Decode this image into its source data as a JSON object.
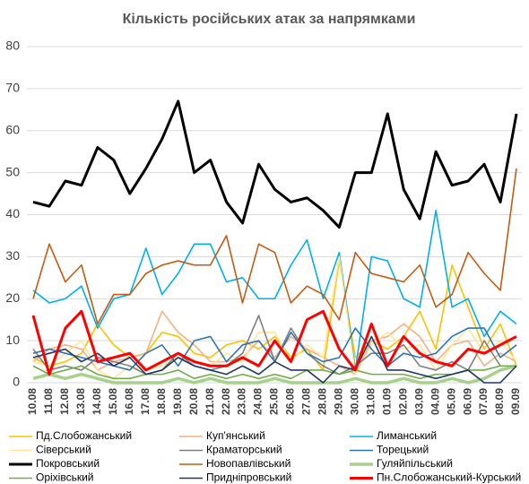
{
  "chart_data": {
    "type": "line",
    "title": "Кількість російських атак за напрямками",
    "categories": [
      "10.08",
      "11.08",
      "12.08",
      "13.08",
      "14.08",
      "15.08",
      "16.08",
      "17.08",
      "18.08",
      "19.08",
      "20.08",
      "21.08",
      "22.08",
      "23.08",
      "24.08",
      "25.08",
      "26.08",
      "27.08",
      "28.08",
      "29.08",
      "30.08",
      "31.08",
      "01.09",
      "02.09",
      "03.09",
      "04.09",
      "05.09",
      "06.09",
      "07.09",
      "08.09",
      "09.09"
    ],
    "ylim": [
      0,
      80
    ],
    "yticks": [
      0,
      10,
      20,
      30,
      40,
      50,
      60,
      70,
      80
    ],
    "grid": true,
    "series": [
      {
        "name": "Пд.Слобожанський",
        "color": "#ffc000",
        "width": 1.6,
        "values": [
          6,
          4,
          5,
          7,
          14,
          9,
          6,
          7,
          12,
          11,
          7,
          6,
          9,
          10,
          8,
          11,
          6,
          8,
          3,
          29,
          6,
          10,
          8,
          11,
          17,
          8,
          28,
          18,
          8,
          14,
          4
        ]
      },
      {
        "name": "Куп'янський",
        "color": "#f4b183",
        "width": 1.6,
        "values": [
          5,
          8,
          9,
          8,
          3,
          5,
          6,
          7,
          17,
          12,
          9,
          5,
          5,
          6,
          10,
          6,
          11,
          8,
          6,
          4,
          2,
          10,
          11,
          14,
          11,
          5,
          9,
          10,
          4,
          7,
          5
        ]
      },
      {
        "name": "Лиманський",
        "color": "#00b0f0",
        "width": 1.6,
        "values": [
          22,
          19,
          20,
          23,
          13,
          20,
          21,
          32,
          21,
          26,
          33,
          33,
          24,
          25,
          20,
          20,
          28,
          34,
          20,
          31,
          3,
          30,
          29,
          20,
          18,
          41,
          18,
          20,
          11,
          17,
          14
        ]
      },
      {
        "name": "Сіверський",
        "color": "#ffe699",
        "width": 1.6,
        "values": [
          5,
          4,
          7,
          10,
          3,
          1,
          4,
          3,
          4,
          6,
          5,
          4,
          7,
          5,
          12,
          12,
          5,
          9,
          6,
          30,
          2,
          9,
          12,
          8,
          9,
          3,
          9,
          13,
          7,
          10,
          5
        ]
      },
      {
        "name": "Краматорський",
        "color": "#808080",
        "width": 1.6,
        "values": [
          8,
          3,
          4,
          3,
          6,
          5,
          4,
          2,
          3,
          7,
          4,
          3,
          4,
          7,
          16,
          5,
          13,
          7,
          4,
          2,
          4,
          7,
          7,
          9,
          4,
          3,
          5,
          3,
          10,
          4,
          4
        ]
      },
      {
        "name": "Торецький",
        "color": "#2e75b6",
        "width": 1.6,
        "values": [
          7,
          8,
          7,
          6,
          5,
          4,
          3,
          7,
          9,
          4,
          10,
          11,
          5,
          9,
          10,
          5,
          12,
          7,
          5,
          6,
          13,
          8,
          4,
          7,
          6,
          7,
          11,
          13,
          13,
          6,
          9
        ]
      },
      {
        "name": "Покровський",
        "color": "#000000",
        "width": 3,
        "values": [
          43,
          42,
          48,
          47,
          56,
          53,
          45,
          51,
          58,
          67,
          50,
          53,
          43,
          38,
          52,
          46,
          43,
          44,
          41,
          37,
          50,
          50,
          64,
          46,
          39,
          55,
          47,
          48,
          52,
          43,
          64
        ]
      },
      {
        "name": "Новопавлівський",
        "color": "#c55a11",
        "width": 1.6,
        "values": [
          20,
          33,
          24,
          28,
          14,
          21,
          21,
          26,
          28,
          29,
          28,
          28,
          35,
          19,
          33,
          31,
          19,
          23,
          21,
          15,
          31,
          26,
          25,
          24,
          28,
          18,
          21,
          31,
          26,
          22,
          51
        ]
      },
      {
        "name": "Гуляйпільський",
        "color": "#a9d18e",
        "width": 3.5,
        "values": [
          1,
          2,
          1,
          2,
          1,
          0,
          0,
          0,
          0,
          1,
          0,
          1,
          0,
          0,
          0,
          1,
          0,
          0,
          0,
          0,
          1,
          0,
          0,
          1,
          0,
          0,
          1,
          0,
          1,
          3,
          4
        ]
      },
      {
        "name": "Оріхівський",
        "color": "#70ad47",
        "width": 1.6,
        "values": [
          4,
          2,
          3,
          4,
          2,
          1,
          1,
          2,
          2,
          3,
          1,
          2,
          1,
          2,
          1,
          2,
          1,
          3,
          3,
          2,
          3,
          2,
          2,
          2,
          1,
          2,
          2,
          3,
          3,
          4,
          4
        ]
      },
      {
        "name": "Придніпровський",
        "color": "#203864",
        "width": 1.6,
        "values": [
          6,
          7,
          8,
          5,
          7,
          4,
          6,
          2,
          3,
          6,
          4,
          3,
          2,
          4,
          2,
          5,
          3,
          3,
          0,
          4,
          3,
          11,
          3,
          3,
          2,
          1,
          2,
          3,
          0,
          0,
          4
        ]
      },
      {
        "name": "Пн.Слобожанський-Курський",
        "color": "#ff0000",
        "width": 3,
        "values": [
          16,
          2,
          13,
          17,
          5,
          6,
          7,
          3,
          5,
          7,
          5,
          4,
          4,
          6,
          4,
          10,
          5,
          15,
          17,
          8,
          3,
          14,
          4,
          11,
          7,
          5,
          4,
          8,
          7,
          9,
          11
        ]
      }
    ]
  }
}
